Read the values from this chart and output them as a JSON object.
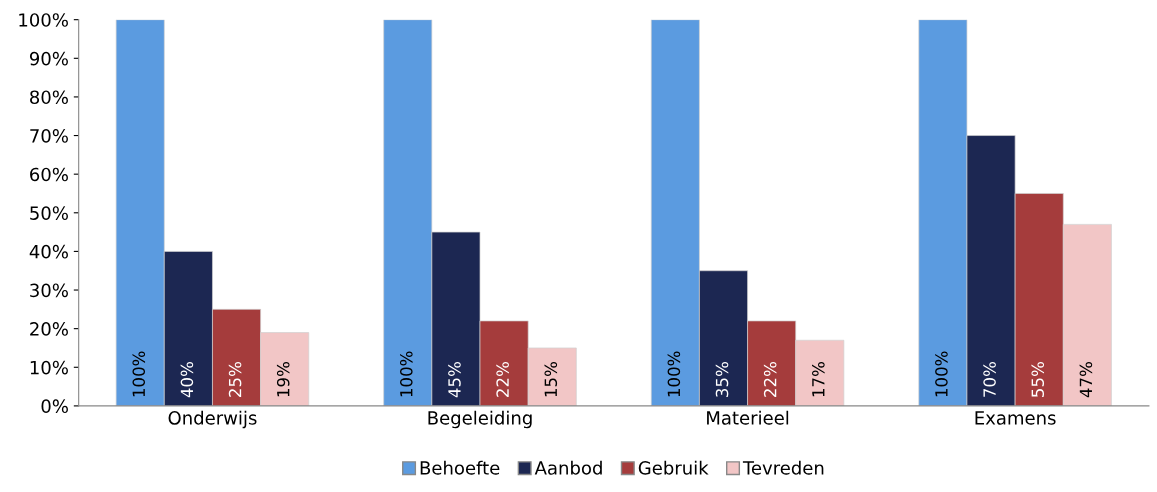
{
  "chart_data": {
    "type": "bar",
    "categories": [
      "Onderwijs",
      "Begeleiding",
      "Materieel",
      "Examens"
    ],
    "series": [
      {
        "name": "Behoefte",
        "color": "#5b9be0",
        "values": [
          100,
          100,
          100,
          100
        ],
        "value_labels": [
          "100%",
          "100%",
          "100%",
          "100%"
        ]
      },
      {
        "name": "Aanbod",
        "color": "#1c2752",
        "values": [
          40,
          45,
          35,
          70
        ],
        "value_labels": [
          "40%",
          "45%",
          "35%",
          "70%"
        ]
      },
      {
        "name": "Gebruik",
        "color": "#a53c3c",
        "values": [
          25,
          22,
          22,
          55
        ],
        "value_labels": [
          "25%",
          "22%",
          "22%",
          "55%"
        ]
      },
      {
        "name": "Tevreden",
        "color": "#f2c6c6",
        "values": [
          19,
          15,
          17,
          47
        ],
        "value_labels": [
          "19%",
          "15%",
          "17%",
          "47%"
        ]
      }
    ],
    "ylim": [
      0,
      100
    ],
    "yticks": [
      {
        "value": 0,
        "label": "0%"
      },
      {
        "value": 10,
        "label": "10%"
      },
      {
        "value": 20,
        "label": "20%"
      },
      {
        "value": 30,
        "label": "30%"
      },
      {
        "value": 40,
        "label": "40%"
      },
      {
        "value": 50,
        "label": "50%"
      },
      {
        "value": 60,
        "label": "60%"
      },
      {
        "value": 70,
        "label": "70%"
      },
      {
        "value": 80,
        "label": "80%"
      },
      {
        "value": 90,
        "label": "90%"
      },
      {
        "value": 100,
        "label": "100%"
      }
    ],
    "grid": false,
    "legend": "bottom"
  }
}
